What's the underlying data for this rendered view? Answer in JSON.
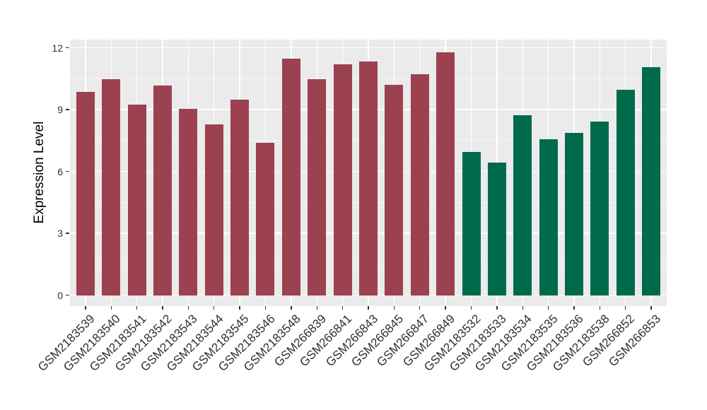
{
  "chart_data": {
    "type": "bar",
    "title": "",
    "xlabel": "",
    "ylabel": "Expression Level",
    "ylim": [
      0,
      12.4
    ],
    "yticks": [
      0,
      3,
      6,
      9,
      12
    ],
    "ytick_labels": [
      "0",
      "3",
      "6",
      "9",
      "12"
    ],
    "grid": "major-and-minor horizontal white, major vertical white per category",
    "legend_position": "none",
    "panel_background": "#EBEBEB",
    "gridline_color": "#FFFFFF",
    "categories": [
      "GSM2183539",
      "GSM2183540",
      "GSM2183541",
      "GSM2183542",
      "GSM2183543",
      "GSM2183544",
      "GSM2183545",
      "GSM2183546",
      "GSM2183548",
      "GSM266839",
      "GSM266841",
      "GSM266843",
      "GSM266845",
      "GSM266847",
      "GSM266849",
      "GSM2183532",
      "GSM2183533",
      "GSM2183534",
      "GSM2183535",
      "GSM2183536",
      "GSM2183538",
      "GSM266852",
      "GSM266853"
    ],
    "values": [
      9.87,
      10.47,
      9.24,
      10.17,
      9.05,
      8.27,
      9.49,
      7.38,
      11.47,
      10.48,
      11.21,
      11.32,
      10.22,
      10.71,
      11.79,
      6.96,
      6.42,
      8.73,
      7.57,
      7.88,
      8.43,
      9.95,
      11.07
    ],
    "bar_groups": [
      0,
      0,
      0,
      0,
      0,
      0,
      0,
      0,
      0,
      0,
      0,
      0,
      0,
      0,
      0,
      1,
      1,
      1,
      1,
      1,
      1,
      1,
      1
    ],
    "group_colors": [
      "#9C4150",
      "#006B4C"
    ],
    "axis_text_color": "#303030"
  }
}
